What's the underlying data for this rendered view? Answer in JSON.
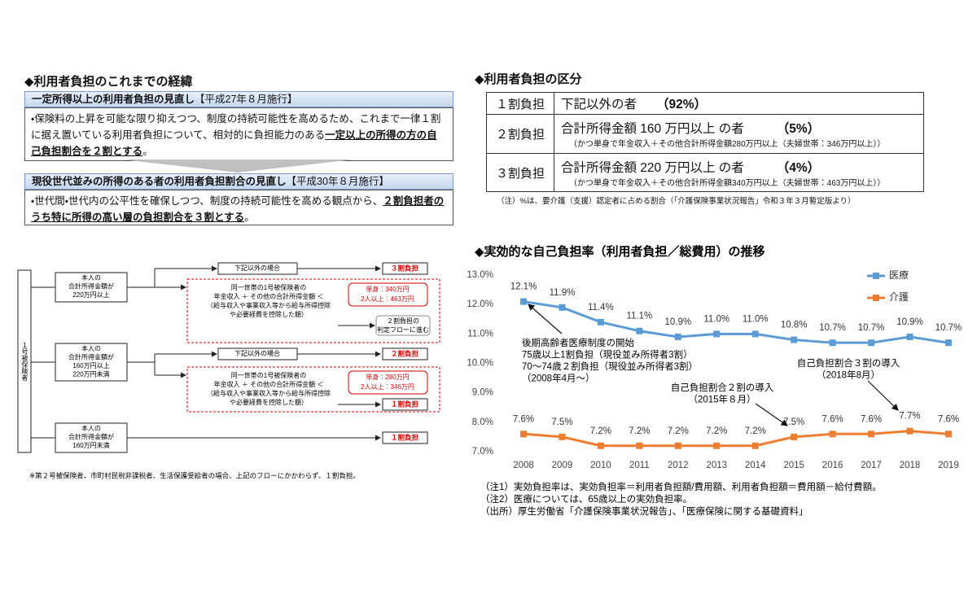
{
  "left_section": {
    "heading": "◆利用者負担のこれまでの経緯",
    "reforms": [
      {
        "title": "一定所得以上の利用者負担の見直し",
        "date": "【平成27年８月施行】",
        "body": [
          "・保険料の上昇を可能な限り抑えつつ、制度の持続可能性を高めるため、これまで一律１割に据え置いている利用者負担について、相対的に負担能力のある",
          "一定以上の所得の方の自己負担割合を２割とする",
          "。"
        ]
      },
      {
        "title": "現役世代並みの所得のある者の利用者負担割合の見直し",
        "date": "【平成30年８月施行】",
        "body": [
          "・世代間・世代内の公平性を確保しつつ、制度の持続可能性を高める観点から、",
          "２割負担者のうち特に所得の高い層の負担割合を３割とする",
          "。"
        ]
      }
    ]
  },
  "flowchart": {
    "insured": "１号被保険者",
    "groups": [
      {
        "condition": [
          "本人の",
          "合計所得金額が",
          "220万円以上"
        ],
        "otherwise": "下記以外の場合",
        "otherwise_result": "３割負担",
        "household": [
          "同一世帯の1号被保険者の",
          "年金収入 ＋ その他の合計所得金額 ＜",
          "（給与収入や事業収入等から給与所得控除",
          "や必要経費を控除した額）"
        ],
        "thresholds": [
          "単身：340万円",
          "2人以上：463万円"
        ],
        "household_result": [
          "２割負担の",
          "判定フローに進む"
        ]
      },
      {
        "condition": [
          "本人の",
          "合計所得金額が",
          "160万円以上",
          "220万円未満"
        ],
        "otherwise": "下記以外の場合",
        "otherwise_result": "２割負担",
        "household": [
          "同一世帯の1号被保険者の",
          "年金収入 ＋ その他の合計所得金額 ＜",
          "（給与収入や事業収入等から給与所得控除",
          "や必要経費を控除した額）"
        ],
        "thresholds": [
          "単身：280万円",
          "2人以上：346万円"
        ],
        "household_result": [
          "１割負担"
        ]
      },
      {
        "condition": [
          "本人の",
          "合計所得金額が",
          "160万円未満"
        ],
        "result": "１割負担"
      }
    ],
    "footnote": "※第２号被保険者、市町村民税非課税者、生活保護受給者の場合、上記のフローにかかわらず、１割負担。"
  },
  "table": {
    "heading": "◆利用者負担の区分",
    "rows": [
      {
        "category": "１割負担",
        "target": "下記以外の者",
        "share": "（92%）"
      },
      {
        "category": "２割負担",
        "target": "合計所得金額 160 万円以上 の者",
        "share": "（5%）",
        "condition": "（かつ単身で年金収入＋その他合計所得金額280万円以上（夫婦世帯：346万円以上））"
      },
      {
        "category": "３割負担",
        "target": "合計所得金額 220 万円以上 の者",
        "share": "（4%）",
        "condition": "（かつ単身で年金収入＋その他合計所得金額340万円以上（夫婦世帯：463万円以上））"
      }
    ],
    "note": "（注）%は、要介護（支援）認定者に占める割合（「介護保険事業状況報告」令和３年３月暫定版より）"
  },
  "chart_data": {
    "type": "line",
    "title": "◆実効的な自己負担率（利用者負担／総費用）の推移",
    "categories": [
      "2008",
      "2009",
      "2010",
      "2011",
      "2012",
      "2013",
      "2014",
      "2015",
      "2016",
      "2017",
      "2018",
      "2019"
    ],
    "series": [
      {
        "name": "医療",
        "color": "#5b9bd5",
        "values": [
          12.1,
          11.9,
          11.4,
          11.1,
          10.9,
          11.0,
          11.0,
          10.8,
          10.7,
          10.7,
          10.9,
          10.7
        ],
        "value_labels": [
          "12.1%",
          "11.9%",
          "11.4%",
          "11.1%",
          "10.9%",
          "11.0%",
          "11.0%",
          "10.8%",
          "10.7%",
          "10.7%",
          "10.9%",
          "10.7%"
        ]
      },
      {
        "name": "介護",
        "color": "#ed7d31",
        "values": [
          7.6,
          7.5,
          7.2,
          7.2,
          7.2,
          7.2,
          7.2,
          7.5,
          7.6,
          7.6,
          7.7,
          7.6
        ],
        "value_labels": [
          "7.6%",
          "7.5%",
          "7.2%",
          "7.2%",
          "7.2%",
          "7.2%",
          "7.2%",
          "7.5%",
          "7.6%",
          "7.6%",
          "7.7%",
          "7.6%"
        ]
      }
    ],
    "ylim": [
      7.0,
      13.0
    ],
    "yticks": [
      {
        "value": 7.0,
        "label": "7.0%"
      },
      {
        "value": 8.0,
        "label": "8.0%"
      },
      {
        "value": 9.0,
        "label": "9.0%"
      },
      {
        "value": 10.0,
        "label": "10.0%"
      },
      {
        "value": 11.0,
        "label": "11.0%"
      },
      {
        "value": 12.0,
        "label": "12.0%"
      },
      {
        "value": 13.0,
        "label": "13.0%"
      }
    ],
    "grid": false,
    "legend": "upper right",
    "annotations": [
      {
        "lines": [
          "後期高齢者医療制度の開始",
          "75歳以上1割負担（現役並み所得者3割）",
          "70～74歳２割負担（現役並み所得者3割）",
          "（2008年4月～）"
        ]
      },
      {
        "lines": [
          "自己負担割合２割の導入",
          "（2015年８月）"
        ]
      },
      {
        "lines": [
          "自己負担割合３割の導入",
          "（2018年8月）"
        ]
      }
    ],
    "notes": [
      "（注1）実効負担率は、実効負担率＝利用者負担額/費用額、利用者負担額＝費用額－給付費額。",
      "（注2）医療については、65歳以上の実効負担率。",
      "（出所）厚生労働省「介護保険事業状況報告」、「医療保険に関する基礎資料」"
    ]
  }
}
